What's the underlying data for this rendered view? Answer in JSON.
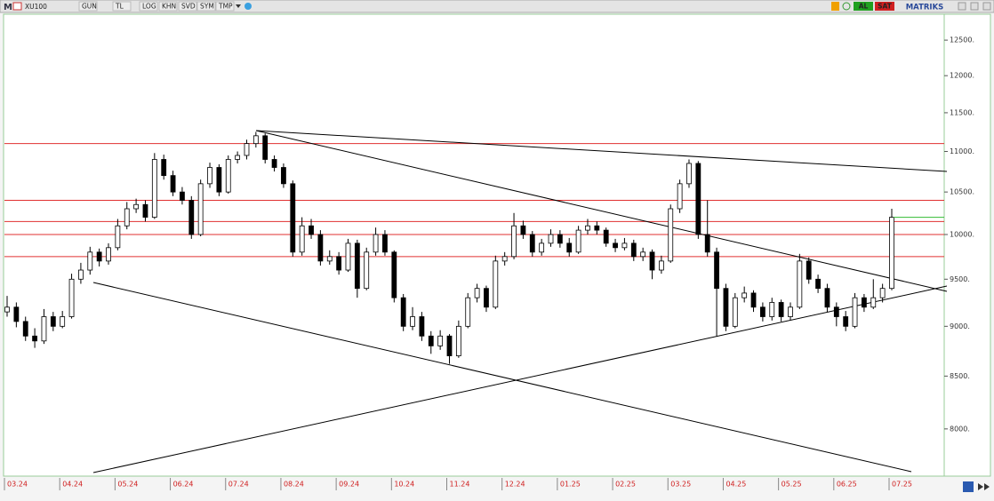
{
  "toolbar": {
    "logo": "M",
    "symbol": "XU100",
    "buttons": [
      "GUN",
      "TL",
      "LOG",
      "KHN",
      "SVD",
      "SYM",
      "TMP"
    ],
    "actions": [
      "AL",
      "SAT"
    ],
    "brand": "MATRIKS"
  },
  "chart_data": {
    "type": "candlestick",
    "log_scale": true,
    "ylim": [
      7578,
      12877
    ],
    "yticks": [
      {
        "value": 8000,
        "label": "8000."
      },
      {
        "value": 8500,
        "label": "8500."
      },
      {
        "value": 9000,
        "label": "9000."
      },
      {
        "value": 9500,
        "label": "9500."
      },
      {
        "value": 10000,
        "label": "10000."
      },
      {
        "value": 10500,
        "label": "10500."
      },
      {
        "value": 11000,
        "label": "11000."
      },
      {
        "value": 11500,
        "label": "11500."
      },
      {
        "value": 12000,
        "label": "12000."
      },
      {
        "value": 12500,
        "label": "12500."
      }
    ],
    "levels": [
      11100,
      10400,
      10150,
      10000,
      9750
    ],
    "level_color": "#e03030",
    "last_price_color": "#33bb33",
    "up_color": "#ffffff",
    "down_color": "#000000",
    "months": [
      {
        "label": "03.24",
        "candles": [
          [
            9150,
            9320,
            9100,
            9200
          ],
          [
            9200,
            9250,
            8990,
            9050
          ],
          [
            9050,
            9100,
            8850,
            8900
          ],
          [
            8900,
            8980,
            8780,
            8850
          ],
          [
            8850,
            9180,
            8820,
            9100
          ],
          [
            9100,
            9150,
            8950,
            9000
          ]
        ]
      },
      {
        "label": "04.24",
        "candles": [
          [
            9000,
            9160,
            8980,
            9100
          ],
          [
            9100,
            9560,
            9080,
            9500
          ],
          [
            9500,
            9680,
            9450,
            9600
          ],
          [
            9600,
            9860,
            9550,
            9800
          ],
          [
            9800,
            9840,
            9640,
            9700
          ],
          [
            9700,
            9900,
            9660,
            9850
          ]
        ]
      },
      {
        "label": "05.24",
        "candles": [
          [
            9850,
            10180,
            9820,
            10100
          ],
          [
            10100,
            10380,
            10060,
            10300
          ],
          [
            10300,
            10420,
            10250,
            10350
          ],
          [
            10350,
            10400,
            10150,
            10200
          ],
          [
            10200,
            10980,
            10180,
            10900
          ],
          [
            10900,
            10960,
            10650,
            10700
          ]
        ]
      },
      {
        "label": "06.24",
        "candles": [
          [
            10700,
            10760,
            10450,
            10500
          ],
          [
            10500,
            10560,
            10350,
            10400
          ],
          [
            10400,
            10450,
            9950,
            10000
          ],
          [
            10000,
            10650,
            9980,
            10600
          ],
          [
            10600,
            10860,
            10550,
            10800
          ],
          [
            10800,
            10840,
            10450,
            10500
          ]
        ]
      },
      {
        "label": "07.24",
        "candles": [
          [
            10500,
            10950,
            10480,
            10900
          ],
          [
            10900,
            11000,
            10850,
            10950
          ],
          [
            10950,
            11150,
            10900,
            11100
          ],
          [
            11100,
            11250,
            11050,
            11200
          ],
          [
            11200,
            11230,
            10850,
            10900
          ],
          [
            10900,
            10950,
            10750,
            10800
          ]
        ]
      },
      {
        "label": "08.24",
        "candles": [
          [
            10800,
            10850,
            10550,
            10600
          ],
          [
            10600,
            10640,
            9750,
            9800
          ],
          [
            9800,
            10200,
            9760,
            10100
          ],
          [
            10100,
            10180,
            9950,
            10000
          ],
          [
            10000,
            10050,
            9650,
            9700
          ],
          [
            9700,
            9820,
            9660,
            9750
          ]
        ]
      },
      {
        "label": "09.24",
        "candles": [
          [
            9750,
            9800,
            9550,
            9600
          ],
          [
            9600,
            9950,
            9580,
            9900
          ],
          [
            9900,
            9940,
            9300,
            9400
          ],
          [
            9400,
            9850,
            9380,
            9800
          ],
          [
            9800,
            10080,
            9760,
            10000
          ],
          [
            10000,
            10050,
            9760,
            9800
          ]
        ]
      },
      {
        "label": "10.24",
        "candles": [
          [
            9800,
            9820,
            9250,
            9300
          ],
          [
            9300,
            9340,
            8950,
            9000
          ],
          [
            9000,
            9200,
            8960,
            9100
          ],
          [
            9100,
            9150,
            8850,
            8900
          ],
          [
            8900,
            8950,
            8720,
            8800
          ],
          [
            8800,
            8960,
            8760,
            8900
          ]
        ]
      },
      {
        "label": "11.24",
        "candles": [
          [
            8900,
            8920,
            8620,
            8700
          ],
          [
            8700,
            9060,
            8680,
            9000
          ],
          [
            9000,
            9350,
            8980,
            9300
          ],
          [
            9300,
            9450,
            9250,
            9400
          ],
          [
            9400,
            9430,
            9150,
            9200
          ],
          [
            9200,
            9760,
            9180,
            9700
          ]
        ]
      },
      {
        "label": "12.24",
        "candles": [
          [
            9700,
            9800,
            9650,
            9750
          ],
          [
            9750,
            10250,
            9720,
            10100
          ],
          [
            10100,
            10160,
            9950,
            10000
          ],
          [
            10000,
            10040,
            9750,
            9800
          ],
          [
            9800,
            9950,
            9760,
            9900
          ],
          [
            9900,
            10060,
            9860,
            10000
          ]
        ]
      },
      {
        "label": "01.25",
        "candles": [
          [
            10000,
            10050,
            9850,
            9900
          ],
          [
            9900,
            9960,
            9750,
            9800
          ],
          [
            9800,
            10100,
            9780,
            10050
          ],
          [
            10050,
            10180,
            10000,
            10100
          ],
          [
            10100,
            10150,
            10000,
            10050
          ],
          [
            10050,
            10080,
            9860,
            9900
          ]
        ]
      },
      {
        "label": "02.25",
        "candles": [
          [
            9900,
            9950,
            9800,
            9850
          ],
          [
            9850,
            9960,
            9820,
            9900
          ],
          [
            9900,
            9940,
            9700,
            9750
          ],
          [
            9750,
            9850,
            9700,
            9800
          ],
          [
            9800,
            9830,
            9500,
            9600
          ],
          [
            9600,
            9760,
            9560,
            9700
          ]
        ]
      },
      {
        "label": "03.25",
        "candles": [
          [
            9700,
            10350,
            9680,
            10300
          ],
          [
            10300,
            10650,
            10250,
            10600
          ],
          [
            10600,
            10900,
            10550,
            10850
          ],
          [
            10850,
            10880,
            9950,
            10000
          ],
          [
            10000,
            10400,
            9750,
            9800
          ],
          [
            9800,
            9850,
            8900,
            9400
          ]
        ]
      },
      {
        "label": "04.25",
        "candles": [
          [
            9400,
            9450,
            8950,
            9000
          ],
          [
            9000,
            9350,
            8980,
            9300
          ],
          [
            9300,
            9420,
            9250,
            9350
          ],
          [
            9350,
            9380,
            9150,
            9200
          ],
          [
            9200,
            9250,
            9050,
            9100
          ],
          [
            9100,
            9300,
            9060,
            9250
          ]
        ]
      },
      {
        "label": "05.25",
        "candles": [
          [
            9250,
            9280,
            9050,
            9100
          ],
          [
            9100,
            9250,
            9060,
            9200
          ],
          [
            9200,
            9780,
            9180,
            9700
          ],
          [
            9700,
            9740,
            9450,
            9500
          ],
          [
            9500,
            9550,
            9350,
            9400
          ],
          [
            9400,
            9450,
            9150,
            9200
          ]
        ]
      },
      {
        "label": "06.25",
        "candles": [
          [
            9200,
            9250,
            9000,
            9100
          ],
          [
            9100,
            9160,
            8950,
            9000
          ],
          [
            9000,
            9350,
            8980,
            9300
          ],
          [
            9300,
            9340,
            9150,
            9200
          ],
          [
            9200,
            9500,
            9180,
            9300
          ],
          [
            9300,
            9450,
            9250,
            9400
          ]
        ]
      },
      {
        "label": "07.25",
        "candles": [
          [
            9400,
            10300,
            9380,
            10200
          ]
        ]
      }
    ]
  }
}
